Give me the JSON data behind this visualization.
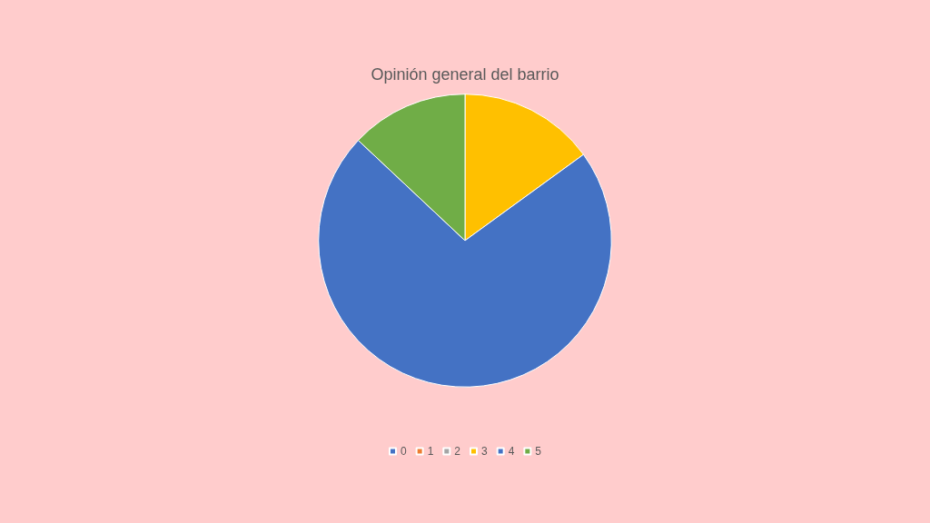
{
  "chart_data": {
    "type": "pie",
    "title": "Opinión general del barrio",
    "categories": [
      "0",
      "1",
      "2",
      "3",
      "4",
      "5"
    ],
    "values": [
      0,
      0,
      0,
      15,
      72,
      13
    ],
    "colors": [
      "#4472c4",
      "#ed7d31",
      "#a5a5a5",
      "#ffc000",
      "#4472c4",
      "#70ad47"
    ],
    "legend": "bottom"
  }
}
